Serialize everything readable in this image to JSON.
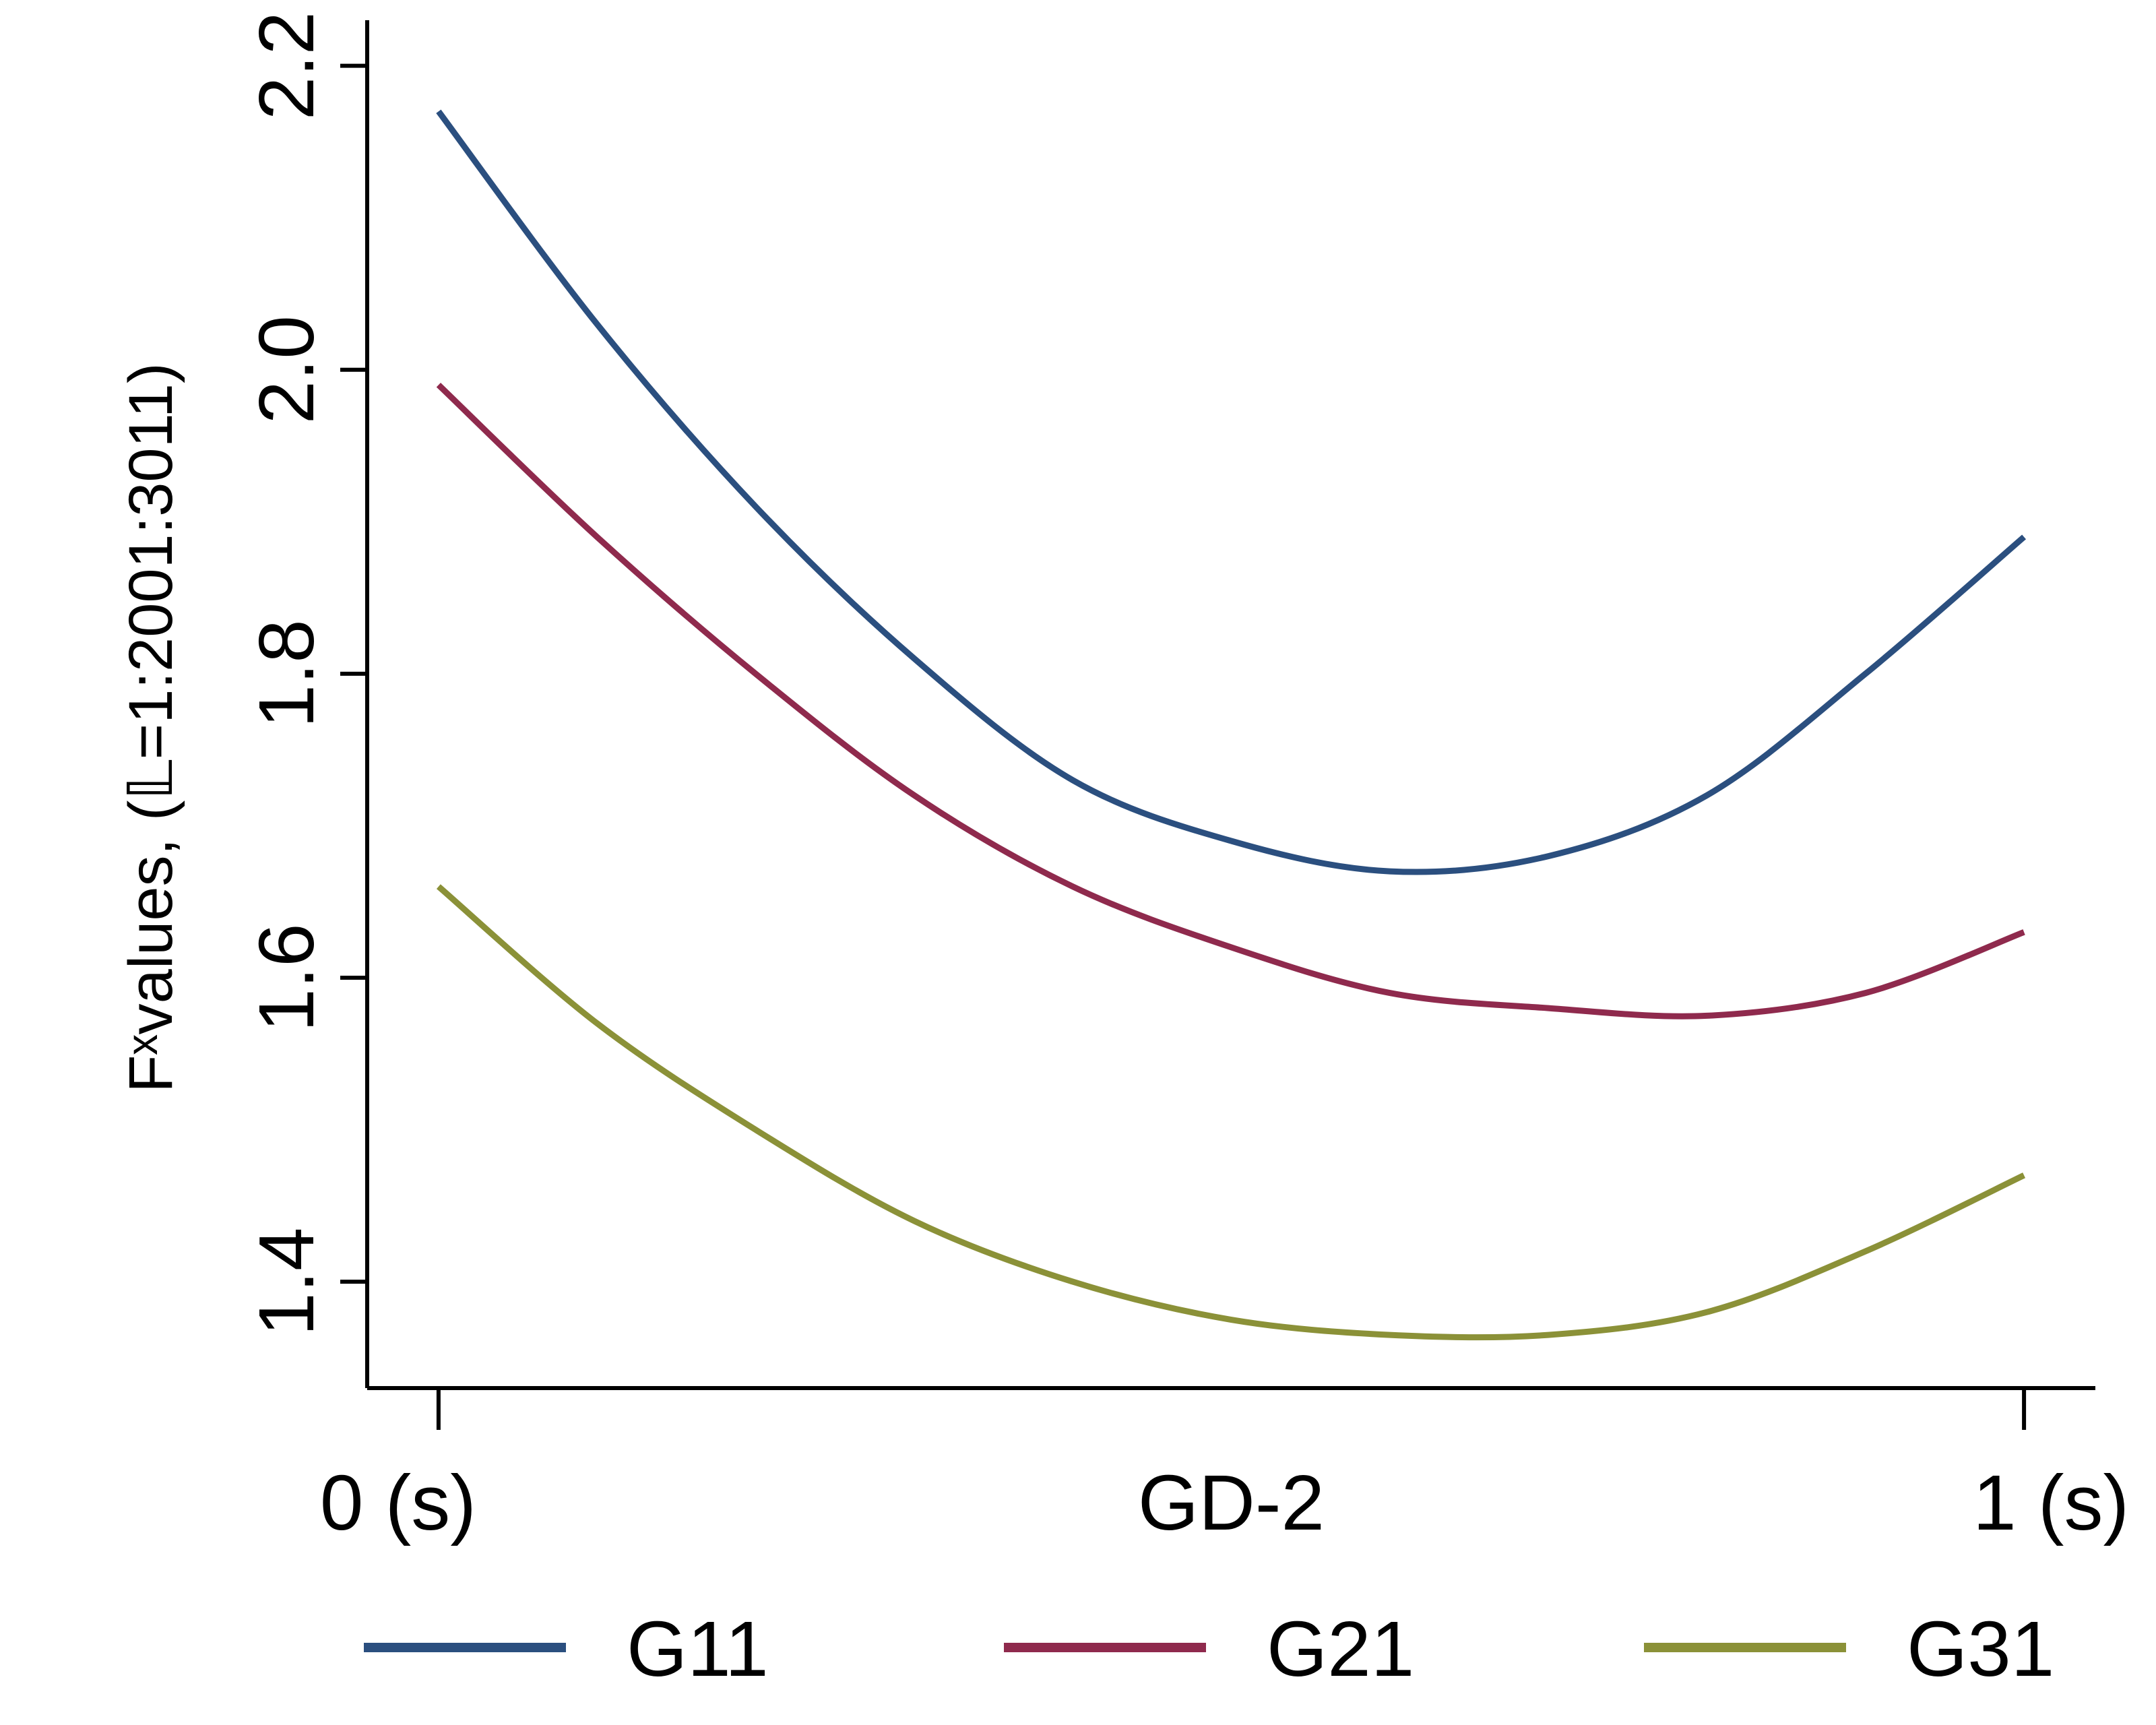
{
  "chart_data": {
    "type": "line",
    "title": "",
    "xlabel": "GD-2",
    "ylabel": "Fˣvalues, (𝕃=1:2001:3011)",
    "x_tick_labels": [
      "0 (s)",
      "1 (s)"
    ],
    "x": [
      0,
      0.1,
      0.2,
      0.3,
      0.4,
      0.5,
      0.6,
      0.7,
      0.8,
      0.9,
      1.0
    ],
    "xlim": [
      -0.045,
      1.045
    ],
    "ylim": [
      1.33,
      2.23
    ],
    "yticks": [
      1.4,
      1.6,
      1.8,
      2.0,
      2.2
    ],
    "ytick_labels": [
      "1.4",
      "1.6",
      "1.8",
      "2.0",
      "2.2"
    ],
    "grid": false,
    "legend_position": "bottom",
    "series": [
      {
        "name": "G11",
        "color": "#2b4f7f",
        "values": [
          2.17,
          2.03,
          1.91,
          1.81,
          1.73,
          1.69,
          1.67,
          1.68,
          1.72,
          1.8,
          1.89
        ]
      },
      {
        "name": "G21",
        "color": "#8f2a4d",
        "values": [
          1.99,
          1.89,
          1.8,
          1.72,
          1.66,
          1.62,
          1.59,
          1.58,
          1.575,
          1.59,
          1.63
        ]
      },
      {
        "name": "G31",
        "color": "#8b9138",
        "values": [
          1.66,
          1.57,
          1.5,
          1.44,
          1.4,
          1.375,
          1.365,
          1.365,
          1.38,
          1.42,
          1.47
        ]
      }
    ]
  }
}
